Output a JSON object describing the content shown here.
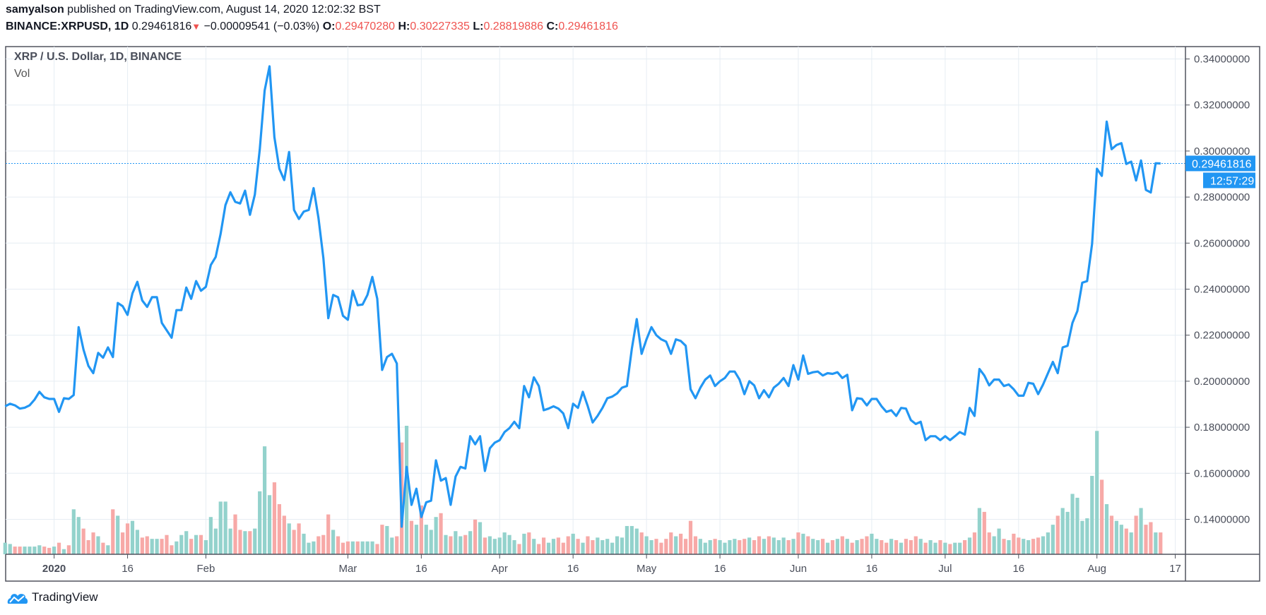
{
  "header": {
    "author": "samyalson",
    "published": " published on TradingView.com, August 14, 2020 12:02:32 BST",
    "symbol": "BINANCE:XRPUSD, 1D",
    "last": "0.29461816",
    "change": "−0.00009541 (−0.03%)",
    "o_label": "O:",
    "o": "0.29470280",
    "h_label": "H:",
    "h": "0.30227335",
    "l_label": "L:",
    "l": "0.28819886",
    "c_label": "C:",
    "c": "0.29461816",
    "direction_icon": "triangle-down-icon"
  },
  "legend": {
    "title": "XRP / U.S. Dollar, 1D, BINANCE",
    "vol": "Vol"
  },
  "price_label": "0.29461816",
  "countdown": "12:57:29",
  "logo_text": "TradingView",
  "colors": {
    "line": "#2196f3",
    "up_volume": "#93d2cc",
    "down_volume": "#f7a9a7",
    "down_text": "#ef5350",
    "grid": "#e6edf3"
  },
  "chart_data": {
    "type": "line",
    "title": "XRP / U.S. Dollar, 1D, BINANCE",
    "ylim": [
      0.126,
      0.346
    ],
    "y_ticks": [
      "0.14000000",
      "0.16000000",
      "0.18000000",
      "0.20000000",
      "0.22000000",
      "0.24000000",
      "0.26000000",
      "0.28000000",
      "0.30000000",
      "0.32000000",
      "0.34000000"
    ],
    "x_ticks": [
      [
        "2020-01-01",
        "2020"
      ],
      [
        "2020-01-16",
        "16"
      ],
      [
        "2020-02-01",
        "Feb"
      ],
      [
        "2020-03-01",
        "Mar"
      ],
      [
        "2020-03-16",
        "16"
      ],
      [
        "2020-04-01",
        "Apr"
      ],
      [
        "2020-04-16",
        "16"
      ],
      [
        "2020-05-01",
        "May"
      ],
      [
        "2020-05-16",
        "16"
      ],
      [
        "2020-06-01",
        "Jun"
      ],
      [
        "2020-06-16",
        "16"
      ],
      [
        "2020-07-01",
        "Jul"
      ],
      [
        "2020-07-16",
        "16"
      ],
      [
        "2020-08-01",
        "Aug"
      ],
      [
        "2020-08-17",
        "17"
      ]
    ],
    "x_range": [
      "2019-12-22",
      "2020-08-23"
    ],
    "last_close": 0.29461816,
    "grid": true,
    "volume_units": "percent of tallest bar",
    "months": [
      {
        "start": "2019-12-22",
        "close": [
          0.1891,
          0.1902,
          0.1895,
          0.1881,
          0.1885,
          0.1895,
          0.192,
          0.1954,
          0.193,
          0.1923
        ],
        "volume": [
          9,
          8,
          6,
          6,
          6,
          6,
          6,
          7,
          6,
          5
        ]
      },
      {
        "start": "2020-01-01",
        "close": [
          0.1923,
          0.1867,
          0.1926,
          0.1923,
          0.194,
          0.2235,
          0.2137,
          0.2067,
          0.2035,
          0.2123,
          0.2102,
          0.2147,
          0.2105,
          0.234,
          0.2326,
          0.2288,
          0.2382,
          0.2432,
          0.2351,
          0.2323,
          0.2365,
          0.2365,
          0.2253,
          0.2221,
          0.2189,
          0.2309,
          0.2309,
          0.2407,
          0.2358,
          0.2435,
          0.2393
        ],
        "volume": [
          6,
          9,
          4,
          7,
          35,
          29,
          20,
          11,
          17,
          14,
          9,
          7,
          35,
          30,
          17,
          24,
          26,
          19,
          13,
          14,
          12,
          12,
          12,
          15,
          7,
          10,
          15,
          18,
          12,
          15,
          15
        ]
      },
      {
        "start": "2020-02-01",
        "close": [
          0.241,
          0.2505,
          0.254,
          0.2639,
          0.2765,
          0.2821,
          0.2779,
          0.2772,
          0.2828,
          0.2723,
          0.281,
          0.3007,
          0.3263,
          0.3368,
          0.306,
          0.2923,
          0.2874,
          0.2996,
          0.2744,
          0.2705,
          0.2737,
          0.2744,
          0.2839,
          0.2709,
          0.2533,
          0.2274,
          0.2375,
          0.2365,
          0.2284
        ],
        "volume": [
          11,
          29,
          20,
          41,
          41,
          20,
          31,
          19,
          18,
          18,
          20,
          49,
          84,
          46,
          56,
          39,
          30,
          24,
          19,
          24,
          16,
          9,
          10,
          14,
          15,
          31,
          19,
          14,
          9
        ]
      },
      {
        "start": "2020-03-01",
        "close": [
          0.2267,
          0.2393,
          0.233,
          0.2333,
          0.2375,
          0.2453,
          0.2358,
          0.2049,
          0.2105,
          0.2119,
          0.2077,
          0.1368,
          0.1628,
          0.1463,
          0.1533,
          0.141,
          0.1474,
          0.1481,
          0.1656,
          0.1568,
          0.1579,
          0.1463,
          0.1586,
          0.1628,
          0.1621,
          0.1761,
          0.1726,
          0.1761,
          0.161,
          0.1709,
          0.1733
        ],
        "volume": [
          10,
          10,
          10,
          10,
          10,
          10,
          8,
          23,
          22,
          13,
          14,
          87,
          100,
          26,
          23,
          38,
          23,
          19,
          29,
          32,
          15,
          14,
          18,
          14,
          15,
          18,
          27,
          25,
          13,
          14,
          12
        ]
      },
      {
        "start": "2020-04-01",
        "close": [
          0.1744,
          0.1779,
          0.1796,
          0.1824,
          0.1796,
          0.1979,
          0.193,
          0.2017,
          0.1979,
          0.1874,
          0.1881,
          0.1891,
          0.1881,
          0.186,
          0.1796,
          0.1902,
          0.1884,
          0.1954,
          0.1891,
          0.1821,
          0.1849,
          0.1884,
          0.1926,
          0.1933,
          0.1947,
          0.1972,
          0.1979,
          0.214,
          0.227,
          0.2119
        ],
        "volume": [
          13,
          17,
          15,
          11,
          8,
          16,
          17,
          12,
          8,
          13,
          9,
          12,
          13,
          9,
          14,
          16,
          12,
          9,
          14,
          11,
          13,
          11,
          12,
          9,
          14,
          13,
          22,
          22,
          20,
          17
        ]
      },
      {
        "start": "2020-05-01",
        "close": [
          0.2182,
          0.2235,
          0.22,
          0.2182,
          0.2172,
          0.2119,
          0.2182,
          0.2175,
          0.2154,
          0.1965,
          0.1926,
          0.1972,
          0.2007,
          0.2025,
          0.1979,
          0.2,
          0.2014,
          0.2042,
          0.2042,
          0.2007,
          0.1944,
          0.2,
          0.1982,
          0.1926,
          0.1961,
          0.193,
          0.1972,
          0.1989,
          0.2014,
          0.1979,
          0.207
        ],
        "volume": [
          14,
          11,
          12,
          9,
          12,
          17,
          14,
          16,
          12,
          26,
          14,
          12,
          9,
          11,
          12,
          11,
          9,
          11,
          12,
          11,
          12,
          13,
          11,
          14,
          12,
          14,
          13,
          11,
          13,
          11,
          12
        ]
      },
      {
        "start": "2020-06-01",
        "close": [
          0.2007,
          0.2112,
          0.2032,
          0.2039,
          0.2042,
          0.2025,
          0.2035,
          0.2032,
          0.2039,
          0.2014,
          0.2028,
          0.1874,
          0.1926,
          0.1923,
          0.1895,
          0.1923,
          0.1923,
          0.1891,
          0.1867,
          0.1874,
          0.1849,
          0.1884,
          0.1881,
          0.1831,
          0.1814,
          0.1824,
          0.1744,
          0.1761,
          0.1761,
          0.1744
        ],
        "volume": [
          17,
          16,
          14,
          12,
          11,
          12,
          9,
          11,
          12,
          14,
          12,
          9,
          11,
          12,
          14,
          16,
          12,
          11,
          9,
          12,
          11,
          9,
          12,
          11,
          14,
          12,
          9,
          11,
          9,
          11
        ]
      },
      {
        "start": "2020-07-01",
        "close": [
          0.1761,
          0.1744,
          0.1761,
          0.1779,
          0.1768,
          0.1884,
          0.1849,
          0.2053,
          0.2025,
          0.1982,
          0.2007,
          0.2007,
          0.1979,
          0.1986,
          0.1965,
          0.1937,
          0.1937,
          0.1993,
          0.1989,
          0.1944,
          0.1986,
          0.2035,
          0.2084,
          0.2035,
          0.2147,
          0.2154,
          0.2253,
          0.2305,
          0.2428,
          0.2435,
          0.2596
        ],
        "volume": [
          9,
          8,
          9,
          9,
          11,
          13,
          17,
          36,
          33,
          17,
          14,
          20,
          12,
          11,
          16,
          13,
          12,
          11,
          12,
          13,
          14,
          17,
          23,
          30,
          36,
          33,
          47,
          44,
          26,
          28,
          61
        ]
      },
      {
        "start": "2020-08-01",
        "close": [
          0.2923,
          0.2892,
          0.3128,
          0.3008,
          0.3026,
          0.3034,
          0.2944,
          0.2954,
          0.2872,
          0.2959,
          0.2831,
          0.282,
          0.2947,
          0.2946
        ],
        "volume": [
          96,
          58,
          39,
          30,
          26,
          23,
          20,
          17,
          30,
          36,
          23,
          25,
          17,
          17
        ]
      }
    ]
  }
}
